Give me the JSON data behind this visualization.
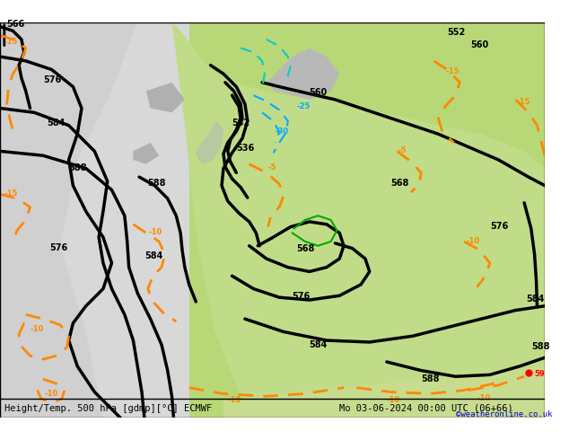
{
  "title_left": "Height/Temp. 500 hPa [gdmp][°C] ECMWF",
  "title_right": "Mo 03-06-2024 00:00 UTC (06+66)",
  "credit": "©weatheronline.co.uk",
  "bg_land_light": "#c8e6a0",
  "bg_land_gray": "#c8c8c8",
  "bg_sea": "#e8e8e8",
  "contour_color_z500": "#000000",
  "contour_color_temp_warm": "#ff8800",
  "contour_color_temp_cold": "#00aaff",
  "contour_color_z850": "#00cc00",
  "fig_width": 6.34,
  "fig_height": 4.9,
  "dpi": 100
}
